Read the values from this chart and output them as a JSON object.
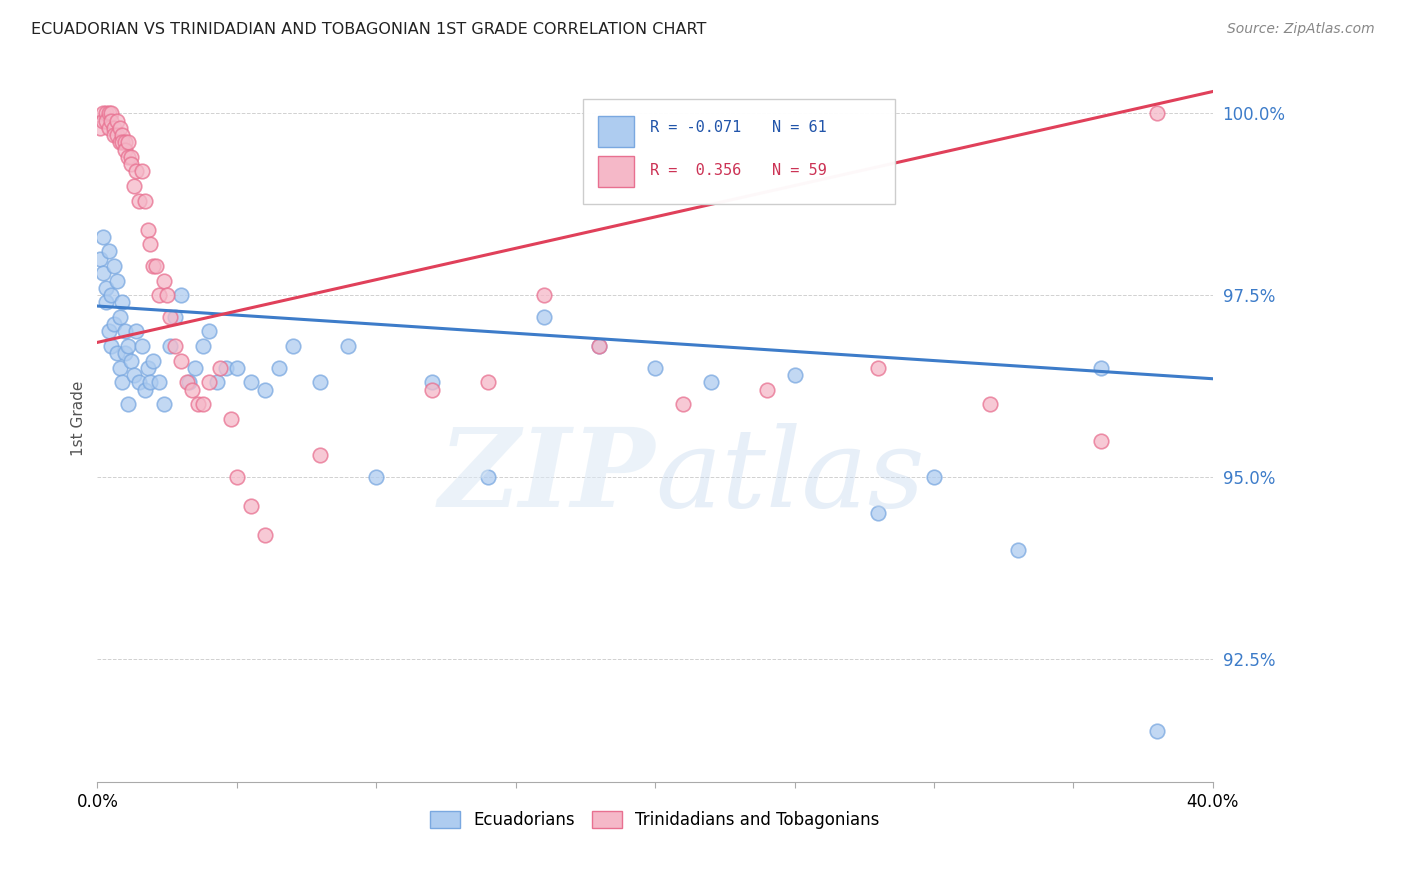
{
  "title": "ECUADORIAN VS TRINIDADIAN AND TOBAGONIAN 1ST GRADE CORRELATION CHART",
  "source": "Source: ZipAtlas.com",
  "ylabel": "1st Grade",
  "ytick_labels": [
    "92.5%",
    "95.0%",
    "97.5%",
    "100.0%"
  ],
  "ytick_values": [
    0.925,
    0.95,
    0.975,
    1.0
  ],
  "xmin": 0.0,
  "xmax": 0.4,
  "ymin": 0.908,
  "ymax": 1.008,
  "legend_R_blue": "-0.071",
  "legend_N_blue": "61",
  "legend_R_pink": "0.356",
  "legend_N_pink": "59",
  "blue_color": "#aeccf0",
  "pink_color": "#f5b8c8",
  "blue_edge_color": "#7aa8e0",
  "pink_edge_color": "#e87090",
  "blue_line_color": "#3d7cc9",
  "pink_line_color": "#e0405a",
  "blue_tick_color": "#3d7cc9",
  "blue_scatter_x": [
    0.001,
    0.002,
    0.002,
    0.003,
    0.003,
    0.004,
    0.004,
    0.005,
    0.005,
    0.006,
    0.006,
    0.007,
    0.007,
    0.008,
    0.008,
    0.009,
    0.009,
    0.01,
    0.01,
    0.011,
    0.011,
    0.012,
    0.013,
    0.014,
    0.015,
    0.016,
    0.017,
    0.018,
    0.019,
    0.02,
    0.022,
    0.024,
    0.026,
    0.028,
    0.03,
    0.033,
    0.035,
    0.038,
    0.04,
    0.043,
    0.046,
    0.05,
    0.055,
    0.06,
    0.065,
    0.07,
    0.08,
    0.09,
    0.1,
    0.12,
    0.14,
    0.16,
    0.18,
    0.2,
    0.22,
    0.25,
    0.28,
    0.3,
    0.33,
    0.36,
    0.38
  ],
  "blue_scatter_y": [
    0.98,
    0.983,
    0.978,
    0.976,
    0.974,
    0.981,
    0.97,
    0.975,
    0.968,
    0.979,
    0.971,
    0.977,
    0.967,
    0.972,
    0.965,
    0.974,
    0.963,
    0.97,
    0.967,
    0.968,
    0.96,
    0.966,
    0.964,
    0.97,
    0.963,
    0.968,
    0.962,
    0.965,
    0.963,
    0.966,
    0.963,
    0.96,
    0.968,
    0.972,
    0.975,
    0.963,
    0.965,
    0.968,
    0.97,
    0.963,
    0.965,
    0.965,
    0.963,
    0.962,
    0.965,
    0.968,
    0.963,
    0.968,
    0.95,
    0.963,
    0.95,
    0.972,
    0.968,
    0.965,
    0.963,
    0.964,
    0.945,
    0.95,
    0.94,
    0.965,
    0.915
  ],
  "pink_scatter_x": [
    0.001,
    0.002,
    0.002,
    0.003,
    0.003,
    0.004,
    0.004,
    0.005,
    0.005,
    0.006,
    0.006,
    0.007,
    0.007,
    0.008,
    0.008,
    0.009,
    0.009,
    0.01,
    0.01,
    0.011,
    0.011,
    0.012,
    0.012,
    0.013,
    0.014,
    0.015,
    0.016,
    0.017,
    0.018,
    0.019,
    0.02,
    0.021,
    0.022,
    0.024,
    0.025,
    0.026,
    0.028,
    0.03,
    0.032,
    0.034,
    0.036,
    0.038,
    0.04,
    0.044,
    0.048,
    0.05,
    0.055,
    0.06,
    0.08,
    0.12,
    0.14,
    0.16,
    0.18,
    0.21,
    0.24,
    0.28,
    0.32,
    0.36,
    0.38
  ],
  "pink_scatter_y": [
    0.998,
    1.0,
    0.999,
    1.0,
    0.999,
    1.0,
    0.998,
    1.0,
    0.999,
    0.998,
    0.997,
    0.999,
    0.997,
    0.998,
    0.996,
    0.997,
    0.996,
    0.996,
    0.995,
    0.996,
    0.994,
    0.994,
    0.993,
    0.99,
    0.992,
    0.988,
    0.992,
    0.988,
    0.984,
    0.982,
    0.979,
    0.979,
    0.975,
    0.977,
    0.975,
    0.972,
    0.968,
    0.966,
    0.963,
    0.962,
    0.96,
    0.96,
    0.963,
    0.965,
    0.958,
    0.95,
    0.946,
    0.942,
    0.953,
    0.962,
    0.963,
    0.975,
    0.968,
    0.96,
    0.962,
    0.965,
    0.96,
    0.955,
    1.0
  ],
  "blue_trend_x": [
    0.0,
    0.4
  ],
  "blue_trend_y": [
    0.9735,
    0.9635
  ],
  "pink_trend_x": [
    0.0,
    0.4
  ],
  "pink_trend_y": [
    0.9685,
    1.003
  ]
}
